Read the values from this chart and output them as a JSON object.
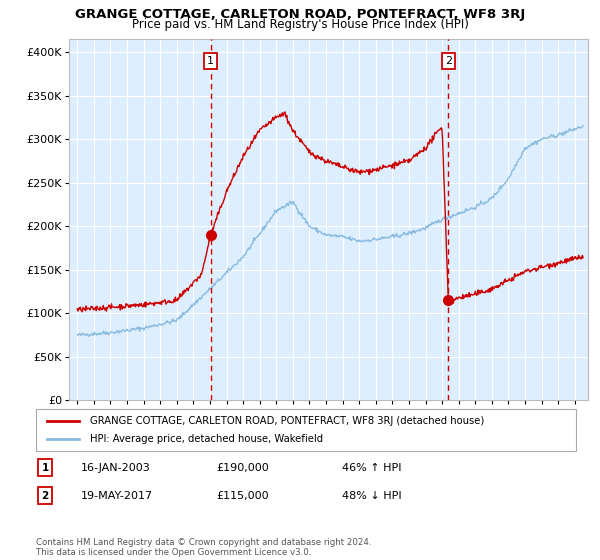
{
  "title": "GRANGE COTTAGE, CARLETON ROAD, PONTEFRACT, WF8 3RJ",
  "subtitle": "Price paid vs. HM Land Registry's House Price Index (HPI)",
  "background_color": "#ffffff",
  "plot_background": "#ddeeff",
  "grid_color": "#ffffff",
  "hpi_color": "#88bbdd",
  "price_color": "#cc0000",
  "marker_color": "#cc0000",
  "dashed_line_color": "#cc0000",
  "sale1_date": 2003.04,
  "sale1_price": 190000,
  "sale2_date": 2017.38,
  "sale2_price": 115000,
  "xlim": [
    1994.5,
    2025.8
  ],
  "ylim": [
    0,
    415000
  ],
  "legend_price_label": "GRANGE COTTAGE, CARLETON ROAD, PONTEFRACT, WF8 3RJ (detached house)",
  "legend_hpi_label": "HPI: Average price, detached house, Wakefield",
  "note1_label": "1",
  "note1_date": "16-JAN-2003",
  "note1_price": "£190,000",
  "note1_hpi": "46% ↑ HPI",
  "note2_label": "2",
  "note2_date": "19-MAY-2017",
  "note2_price": "£115,000",
  "note2_hpi": "48% ↓ HPI",
  "footer": "Contains HM Land Registry data © Crown copyright and database right 2024.\nThis data is licensed under the Open Government Licence v3.0."
}
